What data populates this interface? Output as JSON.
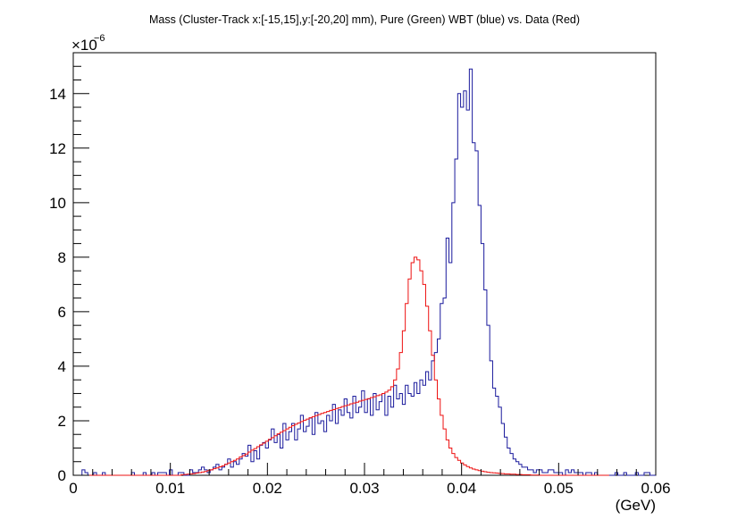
{
  "chart_data": {
    "type": "histogram",
    "title": "Mass (Cluster-Track x:[-15,15],y:[-20,20] mm), Pure (Green) WBT (blue) vs. Data (Red)",
    "xlabel": "(GeV)",
    "ylabel": "",
    "y_multiplier_base": "×10",
    "y_multiplier_exponent": "−6",
    "xlim": [
      0,
      0.06
    ],
    "ylim": [
      0,
      15.5
    ],
    "x_ticks": [
      0,
      0.01,
      0.02,
      0.03,
      0.04,
      0.05,
      0.06
    ],
    "x_tick_labels": [
      "0",
      "0.01",
      "0.02",
      "0.03",
      "0.04",
      "0.05",
      "0.06"
    ],
    "y_ticks": [
      0,
      2,
      4,
      6,
      8,
      10,
      12,
      14
    ],
    "y_tick_labels": [
      "0",
      "2",
      "4",
      "6",
      "8",
      "10",
      "12",
      "14"
    ],
    "bin_width": 0.0003,
    "x_start": 0,
    "grid": false,
    "series": [
      {
        "color": "#1a1a9c",
        "values": [
          0,
          0,
          0,
          0.2,
          0.1,
          0,
          0,
          0.1,
          0,
          0,
          0.1,
          0,
          0,
          0,
          0,
          0,
          0,
          0,
          0,
          0,
          0.1,
          0,
          0,
          0,
          0.1,
          0,
          0,
          0.1,
          0,
          0.1,
          0.1,
          0.1,
          0,
          0.2,
          0,
          0,
          0.1,
          0.1,
          0,
          0,
          0.2,
          0.1,
          0.1,
          0.2,
          0.3,
          0.2,
          0.1,
          0.2,
          0.3,
          0.4,
          0.2,
          0.3,
          0.4,
          0.6,
          0.3,
          0.5,
          0.4,
          0.6,
          0.8,
          0.7,
          1.1,
          0.5,
          0.9,
          0.6,
          1.1,
          1.2,
          1,
          1.3,
          1.7,
          1.2,
          1.5,
          1.0,
          1.9,
          1.3,
          1.6,
          1.9,
          1.3,
          1.7,
          2.2,
          1.6,
          1.8,
          2.1,
          1.5,
          2.3,
          1.9,
          2.0,
          1.6,
          2.2,
          2.0,
          2.6,
          1.9,
          2.4,
          2.2,
          2.8,
          2.3,
          2.1,
          2.9,
          2.3,
          2.5,
          3.1,
          2.3,
          2.8,
          2.2,
          3.0,
          2.4,
          2.7,
          3.0,
          2.2,
          2.9,
          2.5,
          3.3,
          2.8,
          3.0,
          2.6,
          3.3,
          3.0,
          2.9,
          3.4,
          3.0,
          3.5,
          3.3,
          3.8,
          3.5,
          4.2,
          4.5,
          5.0,
          6.3,
          6.5,
          8.7,
          7.8,
          10.0,
          11.6,
          14.0,
          13.5,
          14.1,
          13.4,
          14.9,
          12.2,
          11.9,
          9.9,
          8.5,
          6.8,
          5.5,
          4.2,
          3.2,
          2.9,
          2.5,
          1.9,
          1.4,
          1.0,
          0.8,
          0.6,
          0.5,
          0.4,
          0.3,
          0.3,
          0.2,
          0.2,
          0.1,
          0.2,
          0.2,
          0.1,
          0.1,
          0.2,
          0.2,
          0.1,
          0.1,
          0.1,
          0,
          0.2,
          0.1,
          0.2,
          0.1,
          0.1,
          0.1,
          0,
          0.1,
          0.1,
          0,
          0.1,
          0,
          0,
          0,
          0,
          0,
          0,
          0.1,
          0,
          0,
          0.1,
          0,
          0,
          0,
          0.1,
          0,
          0,
          0.1,
          0.1,
          0,
          0
        ]
      },
      {
        "color": "#ee1111",
        "values": [
          0,
          0,
          0,
          0,
          0,
          0,
          0,
          0,
          0,
          0,
          0,
          0,
          0,
          0,
          0,
          0,
          0,
          0,
          0,
          0,
          0,
          0,
          0,
          0,
          0,
          0,
          0,
          0,
          0,
          0,
          0,
          0,
          0,
          0,
          0,
          0,
          0,
          0.02,
          0.03,
          0.04,
          0.05,
          0.06,
          0.08,
          0.1,
          0.12,
          0.14,
          0.17,
          0.2,
          0.24,
          0.27,
          0.31,
          0.35,
          0.4,
          0.45,
          0.5,
          0.55,
          0.6,
          0.67,
          0.72,
          0.78,
          0.85,
          0.92,
          0.98,
          1.05,
          1.12,
          1.18,
          1.25,
          1.32,
          1.38,
          1.45,
          1.52,
          1.58,
          1.64,
          1.7,
          1.76,
          1.82,
          1.87,
          1.92,
          1.97,
          2.02,
          2.06,
          2.11,
          2.15,
          2.19,
          2.23,
          2.27,
          2.3,
          2.34,
          2.38,
          2.41,
          2.45,
          2.48,
          2.52,
          2.55,
          2.58,
          2.62,
          2.65,
          2.68,
          2.72,
          2.75,
          2.78,
          2.81,
          2.85,
          2.88,
          2.92,
          2.95,
          3.0,
          3.05,
          3.12,
          3.25,
          3.5,
          3.9,
          4.5,
          5.3,
          6.3,
          7.2,
          7.8,
          8.0,
          7.9,
          7.5,
          7.0,
          6.2,
          5.3,
          4.4,
          3.5,
          2.8,
          2.2,
          1.7,
          1.3,
          1.0,
          0.8,
          0.65,
          0.55,
          0.45,
          0.38,
          0.32,
          0.27,
          0.23,
          0.2,
          0.17,
          0.15,
          0.13,
          0.11,
          0.1,
          0.09,
          0.08,
          0.07,
          0.06,
          0.05,
          0.05,
          0.04,
          0.04,
          0.03,
          0.03,
          0.02,
          0.02,
          0.02,
          0.01,
          0.01,
          0.01,
          0,
          0,
          0,
          0,
          0,
          0,
          0,
          0,
          0,
          0,
          0,
          0,
          0,
          0,
          0,
          0,
          0,
          0,
          0,
          0,
          0,
          0,
          0,
          0
        ]
      }
    ]
  }
}
